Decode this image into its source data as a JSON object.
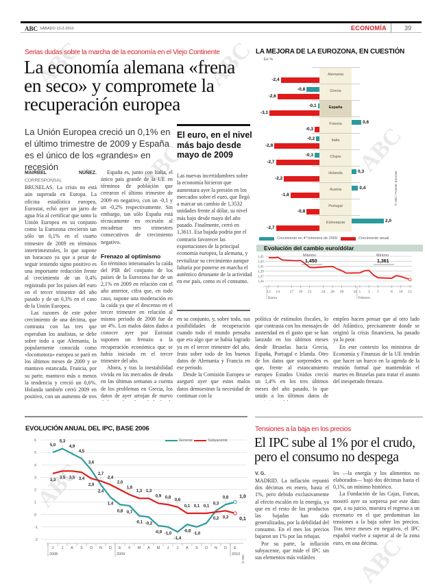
{
  "header": {
    "brand": "ABC",
    "date": "SÁBADO 13-2-2010",
    "section": "ECONOMÍA",
    "page": "39"
  },
  "watermark": "ABC",
  "article": {
    "kicker": "Serias dudas sobre la marcha de la economía en el Viejo Continente",
    "headline_lines": [
      "La economía alemana «frena",
      "en seco» y compromete la",
      "recuperación europea"
    ],
    "subtitle": "La Unión Europea creció un 0,1% en el último trimestre de 2009 y España es el único de los «grandes» en recesión",
    "byline_name": "MAIRBEL NÚÑEZ.",
    "byline_role": "CORRESPONSAL",
    "col1": [
      "BRUSELAS. La crisis no está aún superada en Europa. La oficina estadística europea, Eurostat, echó ayer un jarro de agua fría al certificar que tanto la Unión Europea en su conjunto como la Eurozona crecieron tan sólo un 0,1% en el cuarto trimestre de 2009 en términos intertrimestrales, lo que supone un baracazo ya que a pesar de seguir teniendo signo positivo es una importante reducción frente al crecimiento de un 0,4% registrado por los países del euro en el tercer trimestre del año pasado y de un 0,3% en el caso de la Unión Europea.",
      "Las razones de este pobre crecimiento de una décima, que contrasta con las tres que esperaban los analistas, se debe sobre todo a que Alemania, la popularmente conocida como «locomotora» europea se paró en los últimos meses de 2009 y se mantuvo estancada. Francia, por su parte, mantuvo más o menos la tendencia y creció un 0,6%. Holanda también cerró 2009 en positivo, con un aumento de tres décimas en relación con el tercer trimestre del año."
    ],
    "col2": [
      "España es, junto con Italia, el único país grande de la UE en términos de población que cerraron el último trimestre de 2009 en negativo, con un -0,1 y un -0,2% respectivamente. Sin embargo, tan sólo España está técnicamente en recesión al encadenar tres trimestres consecutivos de crecimiento negativo.",
      "En términos interanuales la caída del PIB del conjunto de los países de la Eurozona fue de un 2,1% en 2009 en relación con el año anterior, cifra que, en todo caso, supone una moderación en la caída ya que el descenso en el tercer trimestre en relación al mismo periodo de 2008 fue de un 4%. Los malos datos dados a conocer ayer por Eurostat suponen un frenazo a la recuperación económica que se había iniciado en el tercer trimestre del año.",
      "Ahora, y tras la inestabilidad vivida en los mercados de deuda en las últimas semanas a cuenta de los problemas en Grecia, los datos de ayer arrojan de nuevo dudas sobre la salud de la economía europea"
    ],
    "subhead": "Frenazo al optimismo",
    "col3": [
      "en su conjunto, y, sobre todo, sus posibilidades de recuperación cuando todo el mundo pensaba que era algo que se había logrado ya en el tercer trimestre del año, fruto sobre todo de los buenos datos de Alemania y Francia en ese periodo.",
      "Desde la Comisión Europea se aseguró ayer que estos malos datos demuestran la necesidad de continuar con la"
    ],
    "col4": [
      "política de estímulos fiscales, lo que contrasta con los mensajes de austeridad en el gasto que se han lanzado en los últimos meses desde Bruselas hacia Grecia, España, Portugal e Irlanda. Otro de los datos que sorprenden es que, frente al estancamiento europeo Estados Unidos creció un 1,4% en los tres últimos meses del año pasado, lo que unido a los últimos datos de crecimiento del"
    ],
    "col5": [
      "empleo hacen pensar que al otro lado del Atlántico, precisamente donde se originó la crisis financiera, ha pasado ya lo peor.",
      "En este contexto los ministros de Economía y Finanzas de la UE tendrán que hacer un hueco en la agenda de la reunión formal que mantendrán el martes en Bruselas para tratar el asunto del inesperado frenazo."
    ]
  },
  "sidebar": {
    "heading": "El euro, en el nivel más bajo desde mayo de 2009",
    "text": "Las nuevas incertidumbres sobre la economía hicieron que aumentara ayer la presión en los mercados sobre el euro, que llegó a marcar un cambio de 1,3532 unidades frente al dólar, su nivel más bajo desde mayo del año pasado. Finalmente, cerró en 1,3611. Esa bajada podría por el contrario favorecer las exportaciones de la principal economía europea, la alemana, y revitalizar su crecimiento aunque faltaría por ponerse en marcha el auténtico detonante de la actividad en ese país, como es el consumo."
  },
  "ipc_article": {
    "kicker": "Tensiones a la baja en los precios",
    "headline_lines": [
      "El IPC sube al 1% por el crudo,",
      "pero el consumo no despega"
    ],
    "byline": "V. G.",
    "colA": [
      "MADRID. La inflación repuntó dos décimas en enero, hasta el 1%, pero debido exclusivamente al efecto escalón en la energía, ya que en el resto de los productos las bajadas han sido generalizadas, por la debilidad del consumo. En el mes los precios bajaron un 1% por las rebajas.",
      "Por su parte, la inflación subyacente, que mide el IPC sin sus elementos más volátiles"
    ],
    "colB": [
      "les —la energía y los alimentos no elaborados— bajó dos décimas hasta el 0,1%, un mínimo histórico.",
      "La Fundación de las Cajas, Funcas, mostró ayer su sorpresa por este dato que, a su juicio, muestra el regreso a un escenario en el que predominan las tensiones a la baja sobre los precios. Tras trece meses en negativo, el IPC español vuelve a superar al de la zona euro, en una décima."
    ]
  },
  "chart_data": [
    {
      "type": "bar",
      "title": "LA MEJORA DE LA EUROZONA, EN CUESTIÓN",
      "unit": "En %",
      "categories": [
        "Alemania",
        "Grecia",
        "España",
        "Francia",
        "Italia",
        "Chipre",
        "Holanda",
        "Austria",
        "Portugal",
        "Eslovaquia"
      ],
      "highlight": "España",
      "series": [
        {
          "name": "Crecimiento en 4º trimestre de 2009",
          "color": "#2a9a9c",
          "values": [
            null,
            -0.8,
            -0.1,
            0.6,
            -0.2,
            -0.3,
            0.3,
            0.4,
            null,
            2.0
          ],
          "labels": [
            "",
            "-0,8",
            "-0,1",
            "0,6",
            "-0,2",
            "-0,3",
            "0,3",
            "0,4",
            "",
            "2,0"
          ]
        },
        {
          "name": "Crecimiento anual",
          "color": "#e01b1b",
          "values": [
            -2.4,
            -2.6,
            -3.1,
            -0.3,
            -2.8,
            -2.7,
            -2.2,
            -1.8,
            -0.8,
            -2.7
          ],
          "labels": [
            "-2,4",
            "-2,6",
            "-3,1",
            "-0,3",
            "-2,8",
            "-2,7",
            "-2,2",
            "-1,8",
            "-0,8",
            "-2,7"
          ]
        }
      ],
      "source": "© ABC / Fuente: Eurostat"
    },
    {
      "type": "line",
      "title": "Evolución del cambio euro/dólar",
      "y_tick_labels": [
        "1,45",
        "1,43",
        "1,41",
        "1,39",
        "1,37",
        "1,36"
      ],
      "ylim": [
        1.355,
        1.455
      ],
      "x_tick_labels": [
        "12",
        "14",
        "17",
        "19",
        "21",
        "24",
        "26",
        "28",
        "31",
        "1",
        "3",
        "5",
        "8",
        "10",
        "12"
      ],
      "x_tick_dates": [
        "2010-01-12",
        "2010-01-14",
        "2010-01-17",
        "2010-01-19",
        "2010-01-21",
        "2010-01-24",
        "2010-01-26",
        "2010-01-28",
        "2010-01-31",
        "2010-02-01",
        "2010-02-03",
        "2010-02-05",
        "2010-02-08",
        "2010-02-10",
        "2010-02-12"
      ],
      "month_labels": [
        {
          "label": "Enero",
          "date": "2010-01-12"
        },
        {
          "label": "Febrero",
          "date": "2010-02-01"
        }
      ],
      "series": [
        {
          "color": "#e01b1b",
          "points": [
            [
              "2010-01-12",
              1.45
            ],
            [
              "2010-01-13",
              1.449
            ],
            [
              "2010-01-14",
              1.451
            ],
            [
              "2010-01-15",
              1.44
            ],
            [
              "2010-01-18",
              1.437
            ],
            [
              "2010-01-19",
              1.438
            ],
            [
              "2010-01-20",
              1.425
            ],
            [
              "2010-01-21",
              1.41
            ],
            [
              "2010-01-22",
              1.409
            ],
            [
              "2010-01-25",
              1.413
            ],
            [
              "2010-01-26",
              1.414
            ],
            [
              "2010-01-27",
              1.404
            ],
            [
              "2010-01-28",
              1.397
            ],
            [
              "2010-01-29",
              1.387
            ],
            [
              "2010-02-01",
              1.388
            ],
            [
              "2010-02-02",
              1.396
            ],
            [
              "2010-02-03",
              1.398
            ],
            [
              "2010-02-04",
              1.379
            ],
            [
              "2010-02-05",
              1.368
            ],
            [
              "2010-02-08",
              1.366
            ],
            [
              "2010-02-09",
              1.377
            ],
            [
              "2010-02-10",
              1.373
            ],
            [
              "2010-02-11",
              1.367
            ],
            [
              "2010-02-12",
              1.361
            ]
          ]
        }
      ],
      "annotations": [
        {
          "label": "Máximo",
          "value": "1,450"
        },
        {
          "label": "Mínimo",
          "value": "1,361"
        }
      ]
    },
    {
      "type": "line",
      "title": "EVOLUCIÓN ANUAL DEL IPC, BASE 2006",
      "categories": [
        "J",
        "J",
        "A",
        "S",
        "O",
        "N",
        "D",
        "E",
        "F",
        "M",
        "A",
        "M",
        "J",
        "J",
        "A",
        "S",
        "O",
        "N",
        "D",
        "E"
      ],
      "years": [
        {
          "label": "2008",
          "start": 0
        },
        {
          "label": "2009",
          "start": 7
        },
        {
          "label": "2010",
          "start": 19
        }
      ],
      "ylim": [
        -2,
        6
      ],
      "yticks": [
        6,
        5,
        4,
        3,
        2,
        1,
        0,
        -1,
        -2
      ],
      "series": [
        {
          "name": "General",
          "color": "#2a9a9c",
          "values": [
            5.0,
            5.3,
            4.9,
            4.5,
            3.6,
            2.4,
            1.4,
            0.8,
            0.7,
            -0.1,
            -0.2,
            -0.9,
            -1.0,
            -1.4,
            -0.8,
            -1.0,
            -0.7,
            0.3,
            0.8,
            1.0
          ],
          "labels": [
            "5,0",
            "5,3",
            "4,9",
            "4,5",
            "3,6",
            "2,4",
            "1,4",
            "0,8",
            "0,7",
            "-0,1",
            "-0,2",
            "-0,9",
            "-1,0",
            "-1,4",
            "-0,8",
            "-1,0",
            "",
            "0,3",
            "0,8",
            "1,0"
          ]
        },
        {
          "name": "Subyacente",
          "color": "#e01b1b",
          "values": [
            3.3,
            3.5,
            3.5,
            3.4,
            2.9,
            2.7,
            2.4,
            2.0,
            1.6,
            1.3,
            1.3,
            0.9,
            0.8,
            0.6,
            0.1,
            0.1,
            0.1,
            0.2,
            0.3,
            0.1
          ],
          "labels": [
            "3,3",
            "3,5",
            "3,5",
            "3,4",
            "2,9",
            "2,7",
            "2,4",
            "2,0",
            "1,6",
            "1,3",
            "1,3",
            "0,9",
            "0,8",
            "0,6",
            "0,1",
            "0,1",
            "0,1",
            "0,2",
            "0,3",
            "0,1"
          ]
        }
      ],
      "source": "© ABC"
    }
  ]
}
